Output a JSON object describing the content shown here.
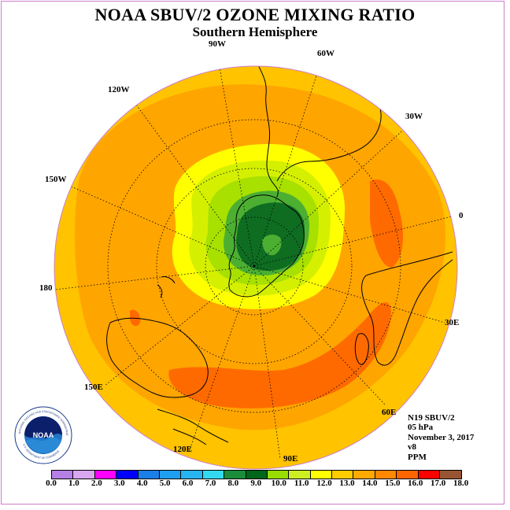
{
  "title": "NOAA SBUV/2 OZONE MIXING RATIO",
  "subtitle": "Southern Hemisphere",
  "longitude_labels": [
    "90W",
    "60W",
    "120W",
    "30W",
    "150W",
    "0",
    "180",
    "30E",
    "150E",
    "60E",
    "120E",
    "90E"
  ],
  "info": {
    "instrument": "N19 SBUV/2",
    "level": "05 hPa",
    "date": "November 3, 2017",
    "version": "v8",
    "units": "PPM"
  },
  "legend": {
    "ticks": [
      "0.0",
      "1.0",
      "2.0",
      "3.0",
      "4.0",
      "5.0",
      "6.0",
      "7.0",
      "8.0",
      "9.0",
      "10.0",
      "11.0",
      "12.0",
      "13.0",
      "14.0",
      "15.0",
      "16.0",
      "17.0",
      "18.0"
    ],
    "colors": [
      "#b57fe6",
      "#d9a6f0",
      "#ff00ff",
      "#0000ff",
      "#1a7fe6",
      "#1f9fef",
      "#26b5f0",
      "#33d9f0",
      "#1a8c3a",
      "#00661a",
      "#99dd00",
      "#ccee22",
      "#ffff00",
      "#ffcc00",
      "#ffaa00",
      "#ff8800",
      "#ff6600",
      "#ff0000",
      "#995533"
    ]
  },
  "logo": {
    "text": "NOAA",
    "ring_text": "NATIONAL OCEANIC AND ATMOSPHERIC ADMINISTRATION",
    "ring_text_bottom": "U.S. DEPARTMENT OF COMMERCE"
  },
  "map_colors": {
    "background": "#ffc300",
    "orange": "#ffa500",
    "dark_orange": "#ff6a00",
    "yellow": "#ffff00",
    "light_yellow_green": "#d4f000",
    "yellow_green": "#a8e000",
    "green": "#4caf32",
    "dark_green": "#0f6d22"
  }
}
